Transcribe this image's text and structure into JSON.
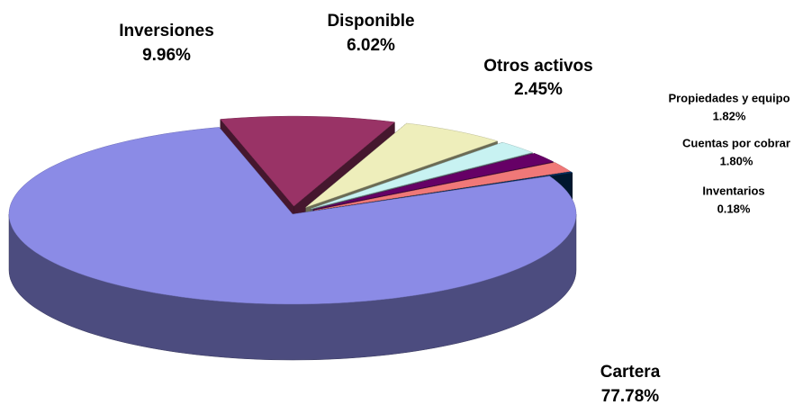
{
  "chart_data": {
    "type": "pie",
    "categories": [
      "Cartera",
      "Inversiones",
      "Disponible",
      "Otros activos",
      "Propiedades y equipo",
      "Cuentas por cobrar",
      "Inventarios"
    ],
    "values": [
      77.78,
      9.96,
      6.02,
      2.45,
      1.82,
      1.8,
      0.18
    ],
    "value_labels": [
      "77.78%",
      "9.96%",
      "6.02%",
      "2.45%",
      "1.82%",
      "1.80%",
      "0.18%"
    ],
    "colors": [
      "#8b8be6",
      "#993366",
      "#eeeebb",
      "#c8f2f2",
      "#660066",
      "#f07878",
      "#003366"
    ]
  }
}
